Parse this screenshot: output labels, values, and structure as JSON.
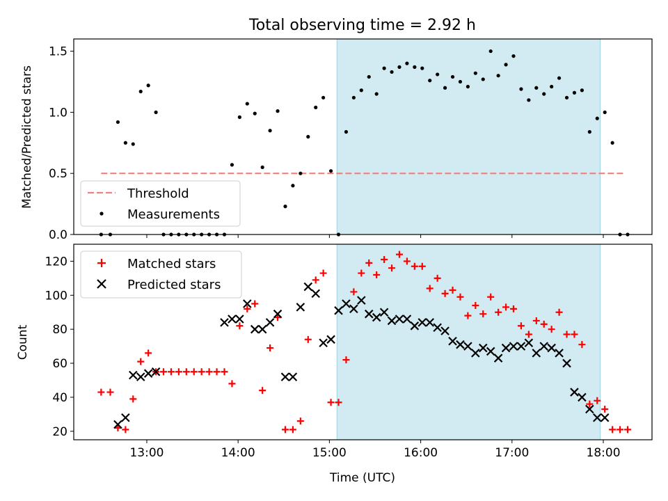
{
  "chart_data": [
    {
      "type": "scatter",
      "title": "Total observing time = 2.92 h",
      "xlabel": "",
      "ylabel": "Matched/Predicted stars",
      "xlim": [
        "12:12",
        "18:32"
      ],
      "ylim": [
        0,
        1.6
      ],
      "yticks": [
        0.0,
        0.5,
        1.0,
        1.5
      ],
      "ytick_labels": [
        "0.0",
        "0.5",
        "1.0",
        "1.5"
      ],
      "shaded_region": {
        "x": [
          "15:05",
          "17:58"
        ],
        "color": "#add8e6"
      },
      "legend": {
        "position": "lower-left",
        "entries": [
          "Threshold",
          "Measurements"
        ]
      },
      "series": [
        {
          "name": "Threshold",
          "style": "dashed-line",
          "color": "#f08080",
          "x": [
            "12:30",
            "18:14"
          ],
          "y": [
            0.5,
            0.5
          ]
        },
        {
          "name": "Measurements",
          "style": "dot",
          "color": "#000000",
          "x": [
            "12:30",
            "12:36",
            "12:41",
            "12:46",
            "12:51",
            "12:56",
            "13:01",
            "13:06",
            "13:11",
            "13:16",
            "13:21",
            "13:26",
            "13:31",
            "13:36",
            "13:41",
            "13:46",
            "13:51",
            "13:56",
            "14:01",
            "14:06",
            "14:11",
            "14:16",
            "14:21",
            "14:26",
            "14:31",
            "14:36",
            "14:41",
            "14:46",
            "14:51",
            "14:56",
            "15:01",
            "15:06",
            "15:11",
            "15:16",
            "15:21",
            "15:26",
            "15:31",
            "15:36",
            "15:41",
            "15:46",
            "15:51",
            "15:56",
            "16:01",
            "16:06",
            "16:11",
            "16:16",
            "16:21",
            "16:26",
            "16:31",
            "16:36",
            "16:41",
            "16:46",
            "16:51",
            "16:56",
            "17:01",
            "17:06",
            "17:11",
            "17:16",
            "17:21",
            "17:26",
            "17:31",
            "17:36",
            "17:41",
            "17:46",
            "17:51",
            "17:56",
            "18:01",
            "18:06",
            "18:11",
            "18:16"
          ],
          "y": [
            0.0,
            0.0,
            0.92,
            0.75,
            0.74,
            1.17,
            1.22,
            1.0,
            0.0,
            0.0,
            0.0,
            0.0,
            0.0,
            0.0,
            0.0,
            0.0,
            0.0,
            0.57,
            0.96,
            1.07,
            0.99,
            0.55,
            0.85,
            1.01,
            0.23,
            0.4,
            0.5,
            0.8,
            1.04,
            1.12,
            0.52,
            0.0,
            0.84,
            1.12,
            1.18,
            1.29,
            1.15,
            1.36,
            1.33,
            1.37,
            1.4,
            1.37,
            1.36,
            1.26,
            1.31,
            1.2,
            1.29,
            1.25,
            1.21,
            1.32,
            1.27,
            1.5,
            1.3,
            1.39,
            1.46,
            1.19,
            1.1,
            1.2,
            1.15,
            1.21,
            1.28,
            1.12,
            1.16,
            1.18,
            0.84,
            0.95,
            1.0,
            0.75,
            0.0,
            0.0
          ]
        }
      ]
    },
    {
      "type": "scatter",
      "title": "",
      "xlabel": "Time (UTC)",
      "ylabel": "Count",
      "xlim": [
        "12:12",
        "18:32"
      ],
      "xticks": [
        "13:00",
        "14:00",
        "15:00",
        "16:00",
        "17:00",
        "18:00"
      ],
      "xtick_labels": [
        "13:00",
        "14:00",
        "15:00",
        "16:00",
        "17:00",
        "18:00"
      ],
      "ylim": [
        15,
        130
      ],
      "yticks": [
        20,
        40,
        60,
        80,
        100,
        120
      ],
      "ytick_labels": [
        "20",
        "40",
        "60",
        "80",
        "100",
        "120"
      ],
      "shaded_region": {
        "x": [
          "15:05",
          "17:58"
        ],
        "color": "#add8e6"
      },
      "legend": {
        "position": "top-left",
        "entries": [
          "Matched stars",
          "Predicted stars"
        ]
      },
      "series": [
        {
          "name": "Matched stars",
          "marker": "+",
          "color": "#ff0000",
          "x": [
            "12:30",
            "12:36",
            "12:41",
            "12:46",
            "12:51",
            "12:56",
            "13:01",
            "13:06",
            "13:11",
            "13:16",
            "13:21",
            "13:26",
            "13:31",
            "13:36",
            "13:41",
            "13:46",
            "13:51",
            "13:56",
            "14:01",
            "14:06",
            "14:11",
            "14:16",
            "14:21",
            "14:26",
            "14:31",
            "14:36",
            "14:41",
            "14:46",
            "14:51",
            "14:56",
            "15:01",
            "15:06",
            "15:11",
            "15:16",
            "15:21",
            "15:26",
            "15:31",
            "15:36",
            "15:41",
            "15:46",
            "15:51",
            "15:56",
            "16:01",
            "16:06",
            "16:11",
            "16:16",
            "16:21",
            "16:26",
            "16:31",
            "16:36",
            "16:41",
            "16:46",
            "16:51",
            "16:56",
            "17:01",
            "17:06",
            "17:11",
            "17:16",
            "17:21",
            "17:26",
            "17:31",
            "17:36",
            "17:41",
            "17:46",
            "17:51",
            "17:56",
            "18:01",
            "18:06",
            "18:11",
            "18:16"
          ],
          "y": [
            43,
            43,
            22,
            21,
            39,
            61,
            66,
            55,
            55,
            55,
            55,
            55,
            55,
            55,
            55,
            55,
            55,
            48,
            82,
            92,
            95,
            44,
            69,
            87,
            21,
            21,
            26,
            74,
            109,
            113,
            37,
            37,
            62,
            102,
            113,
            119,
            112,
            121,
            116,
            124,
            120,
            117,
            117,
            104,
            110,
            101,
            103,
            99,
            88,
            94,
            89,
            99,
            90,
            93,
            92,
            82,
            77,
            85,
            83,
            80,
            90,
            77,
            77,
            71,
            36,
            38,
            33,
            21,
            21,
            21
          ]
        },
        {
          "name": "Predicted stars",
          "marker": "x",
          "color": "#000000",
          "x": [
            "12:41",
            "12:46",
            "12:51",
            "12:56",
            "13:01",
            "13:06",
            "13:51",
            "13:56",
            "14:01",
            "14:06",
            "14:11",
            "14:16",
            "14:21",
            "14:26",
            "14:31",
            "14:36",
            "14:41",
            "14:46",
            "14:51",
            "14:56",
            "15:01",
            "15:06",
            "15:11",
            "15:16",
            "15:21",
            "15:26",
            "15:31",
            "15:36",
            "15:41",
            "15:46",
            "15:51",
            "15:56",
            "16:01",
            "16:06",
            "16:11",
            "16:16",
            "16:21",
            "16:26",
            "16:31",
            "16:36",
            "16:41",
            "16:46",
            "16:51",
            "16:56",
            "17:01",
            "17:06",
            "17:11",
            "17:16",
            "17:21",
            "17:26",
            "17:31",
            "17:36",
            "17:41",
            "17:46",
            "17:51",
            "17:56",
            "18:01"
          ],
          "y": [
            24,
            28,
            53,
            52,
            54,
            55,
            84,
            86,
            86,
            95,
            80,
            80,
            84,
            89,
            52,
            52,
            93,
            105,
            101,
            72,
            74,
            91,
            95,
            92,
            97,
            89,
            87,
            90,
            85,
            86,
            86,
            82,
            84,
            84,
            81,
            79,
            73,
            71,
            70,
            66,
            69,
            67,
            63,
            69,
            70,
            70,
            72,
            66,
            70,
            69,
            66,
            60,
            43,
            40,
            33,
            28,
            28
          ]
        }
      ]
    }
  ]
}
